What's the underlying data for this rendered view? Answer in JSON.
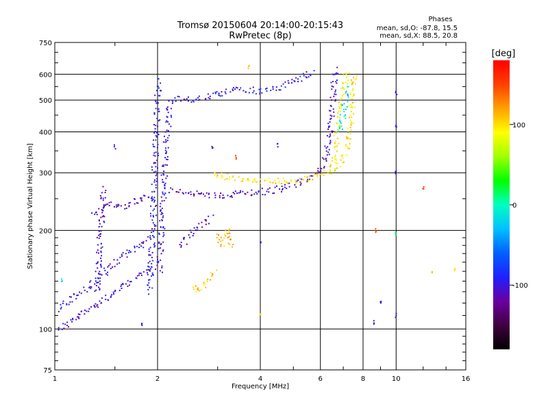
{
  "chart_data": {
    "type": "scatter",
    "title": "Tromsø 20150604 20:14:00-20:15:43",
    "subtitle": "RwPretec (8p)",
    "xlabel": "Frequency [MHz]",
    "ylabel": "Stationary phase Virtual Height [km]",
    "xscale": "log",
    "yscale": "log",
    "xlim": [
      1,
      16
    ],
    "ylim": [
      75,
      750
    ],
    "x_ticks": [
      1,
      2,
      4,
      6,
      8,
      10,
      16
    ],
    "x_tick_labels": [
      "1",
      "2",
      "4",
      "6",
      "8",
      "10",
      "16"
    ],
    "y_ticks": [
      75,
      100,
      200,
      300,
      400,
      500,
      600,
      750
    ],
    "y_tick_labels": [
      "75",
      "100",
      "200",
      "300",
      "400",
      "500",
      "600",
      "750"
    ],
    "grid": true,
    "stats_title": "Phases",
    "stats_lines": [
      "mean, sd,O: -87.8, 15.5",
      "mean, sd,X: 88.5, 20.8"
    ],
    "colorbar": {
      "label": "[deg]",
      "min": -180,
      "max": 180,
      "ticks": [
        100,
        0,
        -100
      ],
      "tick_labels": [
        "100",
        "0",
        "-100"
      ],
      "colors": [
        "#000000",
        "#400040",
        "#6a00a0",
        "#2020ff",
        "#0060ff",
        "#00c0ff",
        "#00ffc0",
        "#00ff00",
        "#a0ff00",
        "#ffff00",
        "#ffa000",
        "#ff4000",
        "#ff0000"
      ]
    },
    "traces": [
      {
        "name": "o-low-1",
        "phase": -105,
        "points": [
          [
            1.02,
            100
          ],
          [
            1.08,
            103
          ],
          [
            1.15,
            108
          ],
          [
            1.22,
            112
          ],
          [
            1.3,
            118
          ],
          [
            1.38,
            122
          ],
          [
            1.45,
            126
          ],
          [
            1.55,
            132
          ],
          [
            1.65,
            138
          ],
          [
            1.75,
            145
          ],
          [
            1.85,
            150
          ],
          [
            1.95,
            155
          ]
        ]
      },
      {
        "name": "o-low-2",
        "phase": -100,
        "points": [
          [
            1.02,
            115
          ],
          [
            1.1,
            122
          ],
          [
            1.2,
            130
          ],
          [
            1.3,
            138
          ],
          [
            1.4,
            148
          ],
          [
            1.5,
            158
          ],
          [
            1.6,
            168
          ],
          [
            1.7,
            175
          ],
          [
            1.8,
            182
          ],
          [
            1.9,
            190
          ]
        ]
      },
      {
        "name": "o-band-1.3",
        "phase": -110,
        "points": [
          [
            1.3,
            225
          ],
          [
            1.35,
            232
          ],
          [
            1.4,
            238
          ],
          [
            1.5,
            240
          ],
          [
            1.6,
            236
          ],
          [
            1.7,
            244
          ],
          [
            1.8,
            250
          ],
          [
            1.95,
            256
          ]
        ]
      },
      {
        "name": "o-vertical-1.35",
        "phase": -105,
        "points": [
          [
            1.33,
            130
          ],
          [
            1.34,
            150
          ],
          [
            1.35,
            170
          ],
          [
            1.36,
            190
          ],
          [
            1.37,
            210
          ],
          [
            1.38,
            230
          ],
          [
            1.39,
            250
          ],
          [
            1.4,
            270
          ]
        ]
      },
      {
        "name": "o-vertical-1.95",
        "phase": -95,
        "points": [
          [
            1.9,
            130
          ],
          [
            1.92,
            170
          ],
          [
            1.94,
            210
          ],
          [
            1.95,
            250
          ],
          [
            1.96,
            290
          ],
          [
            1.97,
            330
          ],
          [
            1.98,
            380
          ],
          [
            1.99,
            430
          ],
          [
            2.0,
            480
          ],
          [
            2.01,
            540
          ],
          [
            2.02,
            575
          ]
        ]
      },
      {
        "name": "o-vertical-2.05",
        "phase": -100,
        "points": [
          [
            2.03,
            150
          ],
          [
            2.05,
            190
          ],
          [
            2.07,
            230
          ],
          [
            2.08,
            270
          ],
          [
            2.1,
            310
          ],
          [
            2.12,
            350
          ],
          [
            2.14,
            400
          ],
          [
            2.16,
            450
          ],
          [
            2.18,
            490
          ]
        ]
      },
      {
        "name": "o-cluster-2.4",
        "phase": -105,
        "points": [
          [
            2.3,
            180
          ],
          [
            2.4,
            185
          ],
          [
            2.5,
            195
          ],
          [
            2.6,
            205
          ],
          [
            2.7,
            210
          ],
          [
            2.8,
            215
          ],
          [
            2.9,
            220
          ]
        ]
      },
      {
        "name": "o-upper-trace",
        "phase": -95,
        "points": [
          [
            2.2,
            505
          ],
          [
            2.4,
            500
          ],
          [
            2.6,
            505
          ],
          [
            2.8,
            510
          ],
          [
            3.0,
            520
          ],
          [
            3.2,
            530
          ],
          [
            3.4,
            540
          ],
          [
            3.6,
            540
          ],
          [
            3.8,
            535
          ],
          [
            4.0,
            530
          ],
          [
            4.3,
            540
          ],
          [
            4.6,
            550
          ],
          [
            5.0,
            570
          ],
          [
            5.4,
            595
          ],
          [
            5.8,
            610
          ]
        ]
      },
      {
        "name": "o-f-trace",
        "phase": -110,
        "points": [
          [
            2.2,
            265
          ],
          [
            2.4,
            262
          ],
          [
            2.6,
            258
          ],
          [
            2.8,
            255
          ],
          [
            3.0,
            255
          ],
          [
            3.3,
            258
          ],
          [
            3.6,
            260
          ],
          [
            4.0,
            262
          ],
          [
            4.4,
            265
          ],
          [
            4.8,
            272
          ],
          [
            5.2,
            280
          ],
          [
            5.6,
            290
          ],
          [
            6.0,
            305
          ],
          [
            6.2,
            330
          ],
          [
            6.35,
            370
          ],
          [
            6.45,
            420
          ],
          [
            6.5,
            480
          ],
          [
            6.55,
            540
          ],
          [
            6.6,
            600
          ],
          [
            6.65,
            630
          ]
        ]
      },
      {
        "name": "x-f-trace",
        "phase": 100,
        "points": [
          [
            2.9,
            300
          ],
          [
            3.1,
            295
          ],
          [
            3.3,
            288
          ],
          [
            3.6,
            286
          ],
          [
            4.0,
            285
          ],
          [
            4.4,
            284
          ],
          [
            4.8,
            283
          ],
          [
            5.3,
            285
          ],
          [
            5.8,
            292
          ],
          [
            6.3,
            302
          ],
          [
            6.8,
            320
          ],
          [
            7.1,
            350
          ],
          [
            7.3,
            400
          ],
          [
            7.4,
            450
          ],
          [
            7.45,
            510
          ],
          [
            7.5,
            560
          ],
          [
            7.55,
            610
          ]
        ]
      },
      {
        "name": "x-low-3.1",
        "phase": 115,
        "points": [
          [
            3.0,
            195
          ],
          [
            3.05,
            185
          ],
          [
            3.1,
            180
          ],
          [
            3.15,
            190
          ],
          [
            3.2,
            200
          ],
          [
            3.25,
            185
          ],
          [
            3.3,
            178
          ]
        ]
      },
      {
        "name": "x-low-2.6",
        "phase": 110,
        "points": [
          [
            2.55,
            130
          ],
          [
            2.6,
            135
          ],
          [
            2.65,
            132
          ],
          [
            2.75,
            138
          ],
          [
            2.85,
            142
          ],
          [
            2.95,
            150
          ]
        ]
      },
      {
        "name": "x-cusp",
        "phase": 90,
        "points": [
          [
            6.5,
            300
          ],
          [
            6.6,
            330
          ],
          [
            6.7,
            380
          ],
          [
            6.8,
            430
          ],
          [
            6.9,
            480
          ],
          [
            7.0,
            530
          ],
          [
            7.1,
            580
          ],
          [
            7.2,
            620
          ]
        ]
      },
      {
        "name": "mixed-cusp",
        "phase": -20,
        "points": [
          [
            6.9,
            400
          ],
          [
            7.0,
            450
          ],
          [
            7.1,
            500
          ],
          [
            7.2,
            550
          ]
        ]
      }
    ],
    "scattered_points": [
      {
        "x": 1.5,
        "y": 360,
        "phase": -100
      },
      {
        "x": 2.9,
        "y": 360,
        "phase": -100
      },
      {
        "x": 3.4,
        "y": 335,
        "phase": 150
      },
      {
        "x": 3.7,
        "y": 630,
        "phase": 110
      },
      {
        "x": 4.5,
        "y": 365,
        "phase": -110
      },
      {
        "x": 4.0,
        "y": 185,
        "phase": -100
      },
      {
        "x": 4.0,
        "y": 110,
        "phase": 100
      },
      {
        "x": 9.0,
        "y": 120,
        "phase": -100
      },
      {
        "x": 8.6,
        "y": 105,
        "phase": -100
      },
      {
        "x": 8.7,
        "y": 200,
        "phase": 140
      },
      {
        "x": 10.0,
        "y": 110,
        "phase": -100
      },
      {
        "x": 10.0,
        "y": 525,
        "phase": -100
      },
      {
        "x": 10.0,
        "y": 420,
        "phase": -100
      },
      {
        "x": 10.0,
        "y": 300,
        "phase": -100
      },
      {
        "x": 10.0,
        "y": 195,
        "phase": 10
      },
      {
        "x": 12.0,
        "y": 268,
        "phase": 150
      },
      {
        "x": 12.7,
        "y": 150,
        "phase": 110
      },
      {
        "x": 14.8,
        "y": 153,
        "phase": 100
      },
      {
        "x": 1.05,
        "y": 140,
        "phase": -20
      },
      {
        "x": 1.8,
        "y": 103,
        "phase": -100
      }
    ]
  }
}
